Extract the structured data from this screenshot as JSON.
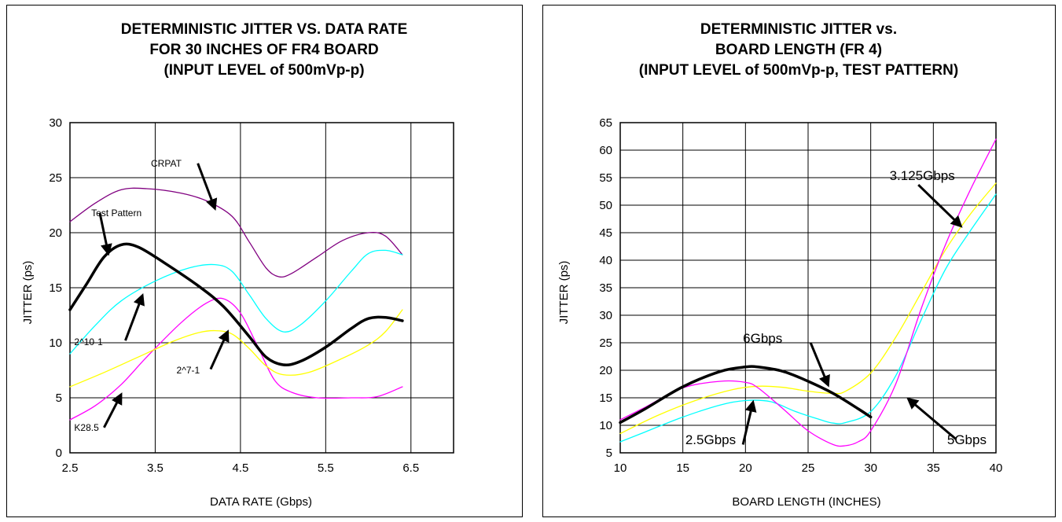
{
  "chart_data": [
    {
      "type": "line",
      "title": [
        "DETERMINISTIC JITTER VS. DATA RATE",
        "FOR 30 INCHES OF FR4 BOARD",
        "(INPUT LEVEL of 500mVp-p)"
      ],
      "xlabel": "DATA RATE (Gbps)",
      "ylabel": "JITTER (ps)",
      "xlim": [
        2.5,
        7.0
      ],
      "ylim": [
        0,
        30
      ],
      "xticks": [
        "2.5",
        "3.5",
        "4.5",
        "5.5",
        "6.5"
      ],
      "yticks": [
        "0",
        "5",
        "10",
        "15",
        "20",
        "25",
        "30"
      ],
      "grid": true,
      "series": [
        {
          "name": "CRPAT",
          "color": "#800080",
          "width": 1.3,
          "x": [
            2.5,
            2.8,
            3.1,
            3.4,
            3.8,
            4.1,
            4.4,
            4.6,
            4.8,
            4.95,
            5.1,
            5.4,
            5.7,
            6.0,
            6.2,
            6.4
          ],
          "y": [
            21,
            22.7,
            23.9,
            24,
            23.6,
            22.9,
            21.5,
            19.2,
            16.8,
            16,
            16.3,
            17.8,
            19.3,
            20,
            19.7,
            18
          ]
        },
        {
          "name": "Test Pattern",
          "color": "#000000",
          "width": 3.5,
          "x": [
            2.5,
            2.7,
            2.9,
            3.1,
            3.3,
            3.6,
            4.0,
            4.3,
            4.6,
            4.8,
            5.0,
            5.2,
            5.5,
            5.8,
            6.0,
            6.2,
            6.4
          ],
          "y": [
            13,
            15.4,
            17.8,
            18.9,
            18.7,
            17.3,
            15.2,
            13.3,
            10.6,
            8.7,
            8.0,
            8.3,
            9.6,
            11.3,
            12.2,
            12.3,
            12
          ]
        },
        {
          "name": "2^10-1",
          "color": "#00FFFF",
          "width": 1.3,
          "x": [
            2.5,
            2.8,
            3.1,
            3.5,
            3.9,
            4.2,
            4.4,
            4.6,
            4.8,
            5.0,
            5.2,
            5.5,
            5.8,
            6.0,
            6.2,
            6.4
          ],
          "y": [
            9,
            11.6,
            13.8,
            15.6,
            16.8,
            17.1,
            16.5,
            14.4,
            12.2,
            11,
            11.6,
            13.8,
            16.5,
            18.1,
            18.4,
            18
          ]
        },
        {
          "name": "K28.5",
          "color": "#FF00FF",
          "width": 1.3,
          "x": [
            2.5,
            2.8,
            3.1,
            3.4,
            3.8,
            4.1,
            4.3,
            4.5,
            4.7,
            4.9,
            5.1,
            5.4,
            5.8,
            6.1,
            6.4
          ],
          "y": [
            3,
            4.3,
            6.2,
            8.7,
            11.8,
            13.6,
            14,
            12.7,
            9.7,
            6.6,
            5.5,
            5,
            5,
            5.1,
            6
          ]
        },
        {
          "name": "2^7-1",
          "color": "#FFFF00",
          "width": 1.3,
          "x": [
            2.5,
            2.9,
            3.3,
            3.7,
            4.0,
            4.2,
            4.4,
            4.6,
            4.8,
            5.0,
            5.3,
            5.7,
            6.0,
            6.2,
            6.4
          ],
          "y": [
            6,
            7.3,
            8.7,
            10.1,
            10.9,
            11.1,
            10.8,
            9.5,
            7.9,
            7.1,
            7.3,
            8.6,
            9.8,
            11,
            13
          ]
        }
      ],
      "annotations": [
        {
          "text": "CRPAT",
          "tx": 3.45,
          "ty": 26,
          "arrow": [
            [
              4.0,
              26.3
            ],
            [
              4.2,
              22.2
            ]
          ]
        },
        {
          "text": "Test Pattern",
          "tx": 2.75,
          "ty": 21.5,
          "arrow": [
            [
              2.85,
              21.8
            ],
            [
              2.95,
              18.1
            ]
          ]
        },
        {
          "text": "2^10-1",
          "tx": 2.55,
          "ty": 9.8,
          "arrow": [
            [
              3.15,
              10.2
            ],
            [
              3.35,
              14.3
            ]
          ]
        },
        {
          "text": "2^7-1",
          "tx": 3.75,
          "ty": 7.2,
          "arrow": [
            [
              4.15,
              7.6
            ],
            [
              4.35,
              11.0
            ]
          ]
        },
        {
          "text": "K28.5",
          "tx": 2.55,
          "ty": 2.0,
          "arrow": [
            [
              2.9,
              2.3
            ],
            [
              3.1,
              5.3
            ]
          ]
        }
      ]
    },
    {
      "type": "line",
      "title": [
        "DETERMINISTIC JITTER vs.",
        "BOARD LENGTH (FR 4)",
        "(INPUT LEVEL of  500mVp-p, TEST PATTERN)"
      ],
      "xlabel": "BOARD LENGTH (INCHES)",
      "ylabel": "JITTER (ps)",
      "xlim": [
        10,
        40
      ],
      "ylim": [
        5,
        65
      ],
      "xticks": [
        "10",
        "15",
        "20",
        "25",
        "30",
        "35",
        "40"
      ],
      "yticks": [
        "5",
        "10",
        "15",
        "20",
        "25",
        "30",
        "35",
        "40",
        "45",
        "50",
        "55",
        "60",
        "65"
      ],
      "grid": true,
      "series": [
        {
          "name": "6Gbps",
          "color": "#000000",
          "width": 3.5,
          "x": [
            10,
            12,
            15,
            18,
            20,
            21,
            23,
            25,
            27,
            29,
            30
          ],
          "y": [
            10.5,
            13,
            17,
            19.8,
            20.6,
            20.6,
            19.8,
            18,
            15.8,
            13,
            11.5
          ]
        },
        {
          "name": "3.125Gbps",
          "color": "#FFFF00",
          "width": 1.3,
          "x": [
            10,
            13,
            16,
            19,
            21,
            23,
            25,
            27,
            28,
            30,
            32,
            34,
            36,
            38,
            40
          ],
          "y": [
            8.5,
            11.8,
            14.5,
            16.5,
            17.1,
            16.9,
            16.2,
            15.8,
            16.2,
            19.5,
            26,
            34,
            42,
            48.5,
            54
          ]
        },
        {
          "name": "2.5Gbps",
          "color": "#00FFFF",
          "width": 1.3,
          "x": [
            10,
            12,
            15,
            18,
            20,
            22,
            24,
            26,
            27,
            28,
            30,
            32,
            34,
            36,
            38,
            40
          ],
          "y": [
            7,
            8.8,
            11.5,
            13.7,
            14.5,
            14.3,
            12.5,
            11,
            10.4,
            10.5,
            12.5,
            19,
            29,
            38.5,
            45.5,
            52
          ]
        },
        {
          "name": "5Gbps",
          "color": "#FF00FF",
          "width": 1.3,
          "x": [
            10,
            12,
            15,
            18,
            20,
            21,
            23,
            25,
            27,
            28,
            29,
            30,
            32,
            34,
            36,
            38,
            40
          ],
          "y": [
            11,
            13.3,
            16.8,
            18,
            17.8,
            16.8,
            13,
            9,
            6.5,
            6.3,
            7,
            9,
            17.5,
            31,
            43,
            53,
            62
          ]
        }
      ],
      "annotations": [
        {
          "text": "6Gbps",
          "tx": 19.8,
          "ty": 25,
          "arrow": [
            [
              25.2,
              25
            ],
            [
              26.6,
              17.3
            ]
          ]
        },
        {
          "text": "3.125Gbps",
          "tx": 31.5,
          "ty": 54.6,
          "arrow": [
            [
              33.8,
              53.7
            ],
            [
              37.2,
              46.2
            ]
          ]
        },
        {
          "text": "2.5Gbps",
          "tx": 15.2,
          "ty": 6.6,
          "arrow": [
            [
              19.8,
              6.5
            ],
            [
              20.6,
              14.2
            ]
          ]
        },
        {
          "text": "5Gbps",
          "tx": 36.1,
          "ty": 6.6,
          "arrow": [
            [
              36.8,
              7.5
            ],
            [
              33.0,
              14.8
            ]
          ]
        }
      ]
    }
  ]
}
